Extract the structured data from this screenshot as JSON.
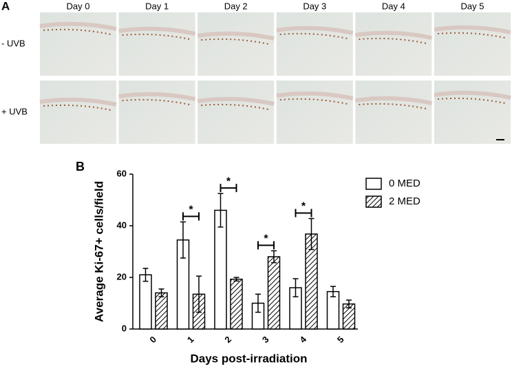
{
  "panel_a": {
    "label": "A",
    "days": [
      "Day 0",
      "Day 1",
      "Day 2",
      "Day 3",
      "Day 4",
      "Day 5"
    ],
    "rows": [
      "- UVB",
      "+ UVB"
    ]
  },
  "chart_data": {
    "type": "bar",
    "panel_label": "B",
    "ylabel": "Average Ki-67+ cells/field",
    "xlabel": "Days post-irradiation",
    "categories": [
      "0",
      "1",
      "2",
      "3",
      "4",
      "5"
    ],
    "series": [
      {
        "name": "0 MED",
        "color": "#ffffff",
        "pattern": "solid",
        "values": [
          21,
          34.5,
          46,
          10,
          16,
          14.5
        ],
        "errors": [
          2.5,
          7,
          6.5,
          3.5,
          3.5,
          2
        ]
      },
      {
        "name": "2 MED",
        "color": "#ffffff",
        "pattern": "hatch",
        "values": [
          14,
          13.5,
          19.3,
          28,
          36.8,
          9.7
        ],
        "errors": [
          1.5,
          7,
          0.7,
          2.3,
          6,
          1.5
        ]
      }
    ],
    "significance": [
      null,
      "*",
      "*",
      "*",
      "*",
      null
    ],
    "ylim": [
      0,
      60
    ],
    "yticks": [
      0,
      20,
      40,
      60
    ],
    "legend": "upper right"
  }
}
